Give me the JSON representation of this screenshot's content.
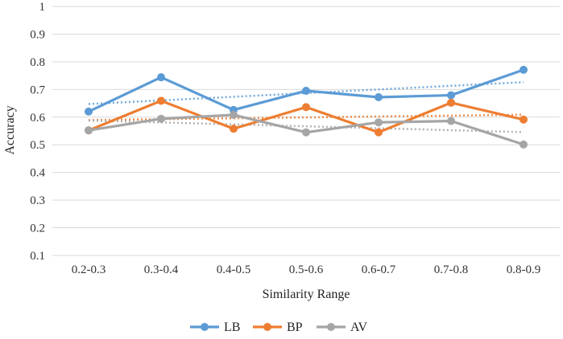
{
  "chart_data": {
    "type": "line",
    "title": "",
    "xlabel": "Similarity Range",
    "ylabel": "Accuracy",
    "categories": [
      "0.2-0.3",
      "0.3-0.4",
      "0.4-0.5",
      "0.5-0.6",
      "0.6-0.7",
      "0.7-0.8",
      "0.8-0.9"
    ],
    "ylim": [
      0.1,
      1
    ],
    "yticks": [
      0.1,
      0.2,
      0.3,
      0.4,
      0.5,
      0.6,
      0.7,
      0.8,
      0.9,
      1
    ],
    "ytick_labels": [
      "0.1",
      "0.2",
      "0.3",
      "0.4",
      "0.5",
      "0.6",
      "0.7",
      "0.8",
      "0.9",
      "1"
    ],
    "grid": "horizontal",
    "legend": "bottom",
    "trendlines": "linear, dotted, per series",
    "series": [
      {
        "name": "LB",
        "color": "#5B9BD5",
        "values": [
          0.62,
          0.744,
          0.626,
          0.695,
          0.672,
          0.679,
          0.771
        ]
      },
      {
        "name": "BP",
        "color": "#ED7D31",
        "values": [
          0.552,
          0.659,
          0.558,
          0.636,
          0.545,
          0.652,
          0.591
        ]
      },
      {
        "name": "AV",
        "color": "#A5A5A5",
        "values": [
          0.552,
          0.594,
          0.608,
          0.545,
          0.581,
          0.586,
          0.501
        ]
      }
    ]
  }
}
